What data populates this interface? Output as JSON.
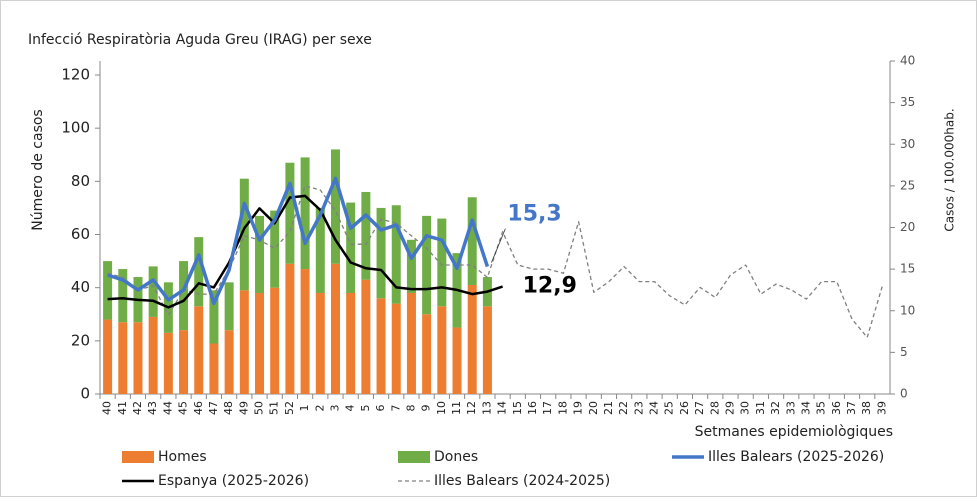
{
  "chart_data": {
    "type": "bar",
    "title": "Infecció Respiratòria Aguda Greu (IRAG) per sexe",
    "x_label": "Setmanes epidemiològiques",
    "y_label": "Número de casos",
    "y2_label": "Casos / 100.000hab.",
    "categories": [
      "40",
      "41",
      "42",
      "43",
      "44",
      "45",
      "46",
      "47",
      "48",
      "49",
      "50",
      "51",
      "52",
      "1",
      "2",
      "3",
      "4",
      "5",
      "6",
      "7",
      "8",
      "9",
      "10",
      "11",
      "12",
      "13",
      "14",
      "15",
      "16",
      "17",
      "18",
      "19",
      "20",
      "21",
      "22",
      "23",
      "24",
      "25",
      "26",
      "27",
      "28",
      "29",
      "30",
      "31",
      "32",
      "33",
      "34",
      "35",
      "36",
      "37",
      "38",
      "39"
    ],
    "ylim": [
      0,
      120
    ],
    "yticks": [
      0,
      20,
      40,
      60,
      80,
      100,
      120
    ],
    "y2lim": [
      0,
      40
    ],
    "y2ticks": [
      0,
      5,
      10,
      15,
      20,
      25,
      30,
      35,
      40
    ],
    "stacked": true,
    "series": [
      {
        "name": "Homes",
        "type": "bar",
        "color": "#ed7d31",
        "values": [
          28,
          27,
          27,
          29,
          23,
          24,
          33,
          19,
          24,
          39,
          38,
          40,
          49,
          47,
          38,
          49,
          38,
          43,
          36,
          34,
          38,
          30,
          33,
          25,
          41,
          33,
          null,
          null,
          null,
          null,
          null,
          null,
          null,
          null,
          null,
          null,
          null,
          null,
          null,
          null,
          null,
          null,
          null,
          null,
          null,
          null,
          null,
          null,
          null,
          null,
          null,
          null
        ]
      },
      {
        "name": "Dones",
        "type": "bar",
        "color": "#70ad47",
        "values": [
          22,
          20,
          17,
          19,
          19,
          26,
          26,
          20,
          18,
          42,
          29,
          29,
          38,
          42,
          32,
          43,
          34,
          33,
          34,
          37,
          20,
          37,
          33,
          28,
          33,
          11,
          null,
          null,
          null,
          null,
          null,
          null,
          null,
          null,
          null,
          null,
          null,
          null,
          null,
          null,
          null,
          null,
          null,
          null,
          null,
          null,
          null,
          null,
          null,
          null,
          null,
          null
        ]
      },
      {
        "name": "Illes Balears (2025-2026)",
        "type": "line",
        "axis": "y2",
        "color": "#4477c8",
        "width": 3.5,
        "values": [
          14.3,
          13.7,
          12.5,
          13.7,
          11.3,
          12.5,
          16.7,
          10.9,
          14.9,
          22.9,
          18.5,
          20.9,
          25.3,
          18.1,
          21.5,
          25.9,
          19.9,
          21.5,
          19.7,
          20.3,
          16.3,
          19,
          18.5,
          15.1,
          20.9,
          15.3,
          null,
          null,
          null,
          null,
          null,
          null,
          null,
          null,
          null,
          null,
          null,
          null,
          null,
          null,
          null,
          null,
          null,
          null,
          null,
          null,
          null,
          null,
          null,
          null,
          null,
          null
        ],
        "value_labels": [
          null,
          null,
          null,
          null,
          null,
          null,
          null,
          null,
          null,
          null,
          null,
          null,
          null,
          null,
          null,
          null,
          null,
          null,
          null,
          null,
          null,
          null,
          null,
          null,
          null,
          "15,3",
          null,
          null,
          null,
          null,
          null,
          null,
          null,
          null,
          null,
          null,
          null,
          null,
          null,
          null,
          null,
          null,
          null,
          null,
          null,
          null,
          null,
          null,
          null,
          null,
          null,
          null
        ]
      },
      {
        "name": "Espanya (2025-2026)",
        "type": "line",
        "axis": "y2",
        "color": "#000000",
        "width": 2.5,
        "values": [
          11.4,
          11.5,
          11.3,
          11.2,
          10.4,
          11.2,
          13.3,
          12.8,
          15.8,
          19.9,
          22.3,
          20.5,
          23.6,
          23.8,
          22.1,
          18.5,
          15.8,
          15.1,
          14.9,
          12.8,
          12.6,
          12.6,
          12.8,
          12.5,
          12,
          12.3,
          12.9,
          null,
          null,
          null,
          null,
          null,
          null,
          null,
          null,
          null,
          null,
          null,
          null,
          null,
          null,
          null,
          null,
          null,
          null,
          null,
          null,
          null,
          null,
          null,
          null,
          null
        ],
        "value_labels": [
          null,
          null,
          null,
          null,
          null,
          null,
          null,
          null,
          null,
          null,
          null,
          null,
          null,
          null,
          null,
          null,
          null,
          null,
          null,
          null,
          null,
          null,
          null,
          null,
          null,
          null,
          "12,9",
          null,
          null,
          null,
          null,
          null,
          null,
          null,
          null,
          null,
          null,
          null,
          null,
          null,
          null,
          null,
          null,
          null,
          null,
          null,
          null,
          null,
          null,
          null,
          null,
          null
        ]
      },
      {
        "name": "Illes Balears (2024-2025)",
        "type": "line",
        "axis": "y2",
        "color": "#808080",
        "width": 1.3,
        "dashed": true,
        "values": [
          14.5,
          14,
          12.5,
          13,
          9.5,
          12.5,
          12,
          12,
          15,
          19,
          18.5,
          17.5,
          19.5,
          25,
          24.5,
          22,
          18,
          18,
          21,
          20.5,
          19,
          17.5,
          15.5,
          15.5,
          15.5,
          14,
          19.5,
          15.5,
          15,
          15,
          14.5,
          20.7,
          12.2,
          13.5,
          15.3,
          13.5,
          13.5,
          11.8,
          10.7,
          12.8,
          11.6,
          14.3,
          15.5,
          12,
          13.2,
          12.5,
          11.4,
          13.5,
          13.5,
          9,
          6.8,
          13
        ]
      }
    ]
  }
}
